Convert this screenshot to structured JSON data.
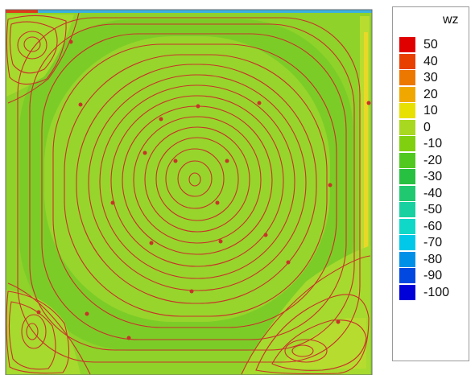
{
  "chart_data": {
    "type": "heatmap",
    "colorbar": {
      "title": "wz",
      "levels": [
        50,
        40,
        30,
        20,
        10,
        0,
        -10,
        -20,
        -30,
        -40,
        -50,
        -60,
        -70,
        -80,
        -90,
        -100
      ],
      "labels": [
        "50",
        "40",
        "30",
        "20",
        "10",
        "0",
        "-10",
        "-20",
        "-30",
        "-40",
        "-50",
        "-60",
        "-70",
        "-80",
        "-90",
        "-100"
      ],
      "colors": [
        "#e00000",
        "#e84000",
        "#ec7800",
        "#f0a800",
        "#e8e000",
        "#a8d820",
        "#80d010",
        "#50c820",
        "#28c040",
        "#20c870",
        "#18d0a0",
        "#10d8c8",
        "#00c8e8",
        "#0090e8",
        "#0048e0",
        "#0000d8"
      ]
    },
    "field": {
      "background_color": "#8fd22a",
      "streamline_color": "#c8322a"
    }
  }
}
